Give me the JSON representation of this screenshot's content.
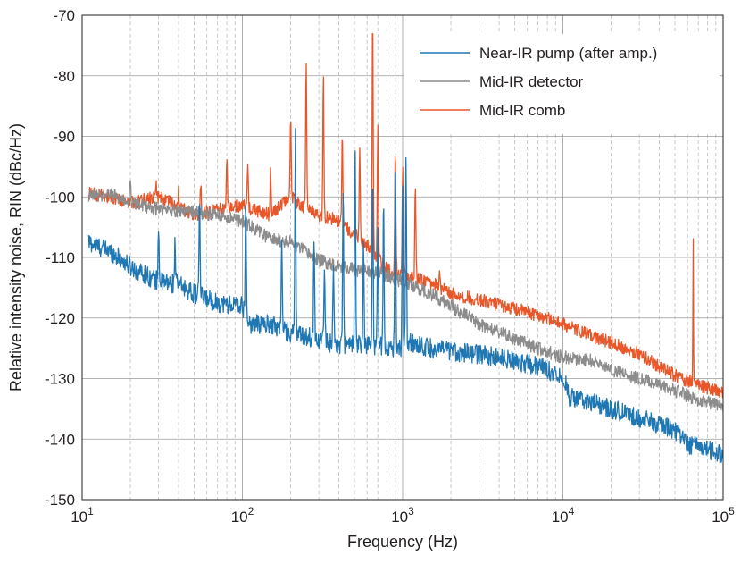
{
  "chart_data": {
    "type": "line",
    "title": "",
    "xlabel": "Frequency (Hz)",
    "ylabel": "Relative intensity noise, RIN (dBc/Hz)",
    "xscale": "log",
    "xlim": [
      10,
      100000
    ],
    "ylim": [
      -150,
      -70
    ],
    "grid": true,
    "legend_position": "top-right",
    "x_ticks": [
      {
        "value": 10,
        "base": "10",
        "exp": "1"
      },
      {
        "value": 100,
        "base": "10",
        "exp": "2"
      },
      {
        "value": 1000,
        "base": "10",
        "exp": "3"
      },
      {
        "value": 10000,
        "base": "10",
        "exp": "4"
      },
      {
        "value": 100000,
        "base": "10",
        "exp": "5"
      }
    ],
    "y_ticks": [
      {
        "value": -70,
        "label": "-70"
      },
      {
        "value": -80,
        "label": "-80"
      },
      {
        "value": -90,
        "label": "-90"
      },
      {
        "value": -100,
        "label": "-100"
      },
      {
        "value": -110,
        "label": "-110"
      },
      {
        "value": -120,
        "label": "-120"
      },
      {
        "value": -130,
        "label": "-130"
      },
      {
        "value": -140,
        "label": "-140"
      },
      {
        "value": -150,
        "label": "-150"
      }
    ],
    "series": [
      {
        "name": "Near-IR pump (after amp.)",
        "color": "#1f77b4",
        "base": [
          [
            11,
            -107.5
          ],
          [
            15,
            -109
          ],
          [
            20,
            -111.5
          ],
          [
            30,
            -114
          ],
          [
            40,
            -114.5
          ],
          [
            50,
            -116
          ],
          [
            70,
            -117.5
          ],
          [
            100,
            -118
          ],
          [
            110,
            -121
          ],
          [
            150,
            -121
          ],
          [
            200,
            -122.5
          ],
          [
            300,
            -123.5
          ],
          [
            400,
            -124.5
          ],
          [
            600,
            -124.5
          ],
          [
            1000,
            -125
          ],
          [
            1100,
            -124
          ],
          [
            1500,
            -125
          ],
          [
            2000,
            -125.5
          ],
          [
            3000,
            -126
          ],
          [
            5000,
            -127
          ],
          [
            7000,
            -128
          ],
          [
            10000,
            -129.5
          ],
          [
            11000,
            -133
          ],
          [
            15000,
            -134
          ],
          [
            20000,
            -135
          ],
          [
            30000,
            -136.5
          ],
          [
            50000,
            -138.5
          ],
          [
            60000,
            -141
          ],
          [
            70000,
            -141
          ],
          [
            85000,
            -142
          ],
          [
            100000,
            -142.5
          ]
        ],
        "peaks": [
          [
            30,
            -104.5
          ],
          [
            38,
            -107
          ],
          [
            54,
            -100
          ],
          [
            105,
            -100.5
          ],
          [
            176,
            -107
          ],
          [
            214,
            -90
          ],
          [
            280,
            -107
          ],
          [
            325,
            -110.5
          ],
          [
            370,
            -110
          ],
          [
            425,
            -98
          ],
          [
            505,
            -91
          ],
          [
            570,
            -108
          ],
          [
            650,
            -95.5
          ],
          [
            700,
            -104.5
          ],
          [
            760,
            -101.5
          ],
          [
            900,
            -94
          ],
          [
            1000,
            -98.5
          ],
          [
            1050,
            -93.5
          ]
        ]
      },
      {
        "name": "Mid-IR detector",
        "color": "#8c8c8c",
        "base": [
          [
            11,
            -100
          ],
          [
            15,
            -99.5
          ],
          [
            20,
            -101
          ],
          [
            30,
            -102
          ],
          [
            50,
            -102.5
          ],
          [
            70,
            -103
          ],
          [
            100,
            -104
          ],
          [
            150,
            -107
          ],
          [
            200,
            -107.5
          ],
          [
            300,
            -110.5
          ],
          [
            500,
            -112
          ],
          [
            700,
            -112.5
          ],
          [
            1000,
            -114
          ],
          [
            1500,
            -116
          ],
          [
            2000,
            -118
          ],
          [
            3000,
            -121
          ],
          [
            5000,
            -123.5
          ],
          [
            7000,
            -125
          ],
          [
            10000,
            -126.5
          ],
          [
            15000,
            -127
          ],
          [
            20000,
            -128.5
          ],
          [
            30000,
            -130
          ],
          [
            50000,
            -132
          ],
          [
            70000,
            -133.5
          ],
          [
            100000,
            -134.5
          ]
        ],
        "peaks": [
          [
            20,
            -97
          ]
        ]
      },
      {
        "name": "Mid-IR comb",
        "color": "#e8572a",
        "base": [
          [
            11,
            -99.5
          ],
          [
            15,
            -100
          ],
          [
            20,
            -101
          ],
          [
            30,
            -100
          ],
          [
            50,
            -103
          ],
          [
            70,
            -102
          ],
          [
            100,
            -101.5
          ],
          [
            150,
            -103
          ],
          [
            200,
            -100
          ],
          [
            250,
            -102
          ],
          [
            300,
            -103
          ],
          [
            400,
            -104
          ],
          [
            600,
            -108
          ],
          [
            800,
            -112
          ],
          [
            1000,
            -113
          ],
          [
            1500,
            -114
          ],
          [
            2000,
            -116
          ],
          [
            3000,
            -117
          ],
          [
            5000,
            -118.5
          ],
          [
            7000,
            -119.5
          ],
          [
            10000,
            -121
          ],
          [
            15000,
            -123
          ],
          [
            20000,
            -124
          ],
          [
            30000,
            -126
          ],
          [
            50000,
            -129.5
          ],
          [
            70000,
            -131
          ],
          [
            100000,
            -132.5
          ]
        ],
        "peaks": [
          [
            29,
            -98
          ],
          [
            40,
            -99
          ],
          [
            55,
            -98
          ],
          [
            80,
            -94
          ],
          [
            108,
            -95
          ],
          [
            150,
            -96
          ],
          [
            200,
            -86
          ],
          [
            250,
            -76.5
          ],
          [
            320,
            -80
          ],
          [
            420,
            -90
          ],
          [
            540,
            -91
          ],
          [
            650,
            -69.5
          ],
          [
            700,
            -89
          ],
          [
            900,
            -92
          ],
          [
            1000,
            -95
          ],
          [
            1200,
            -97.5
          ],
          [
            1700,
            -113
          ],
          [
            65000,
            -105.5
          ]
        ]
      }
    ]
  }
}
